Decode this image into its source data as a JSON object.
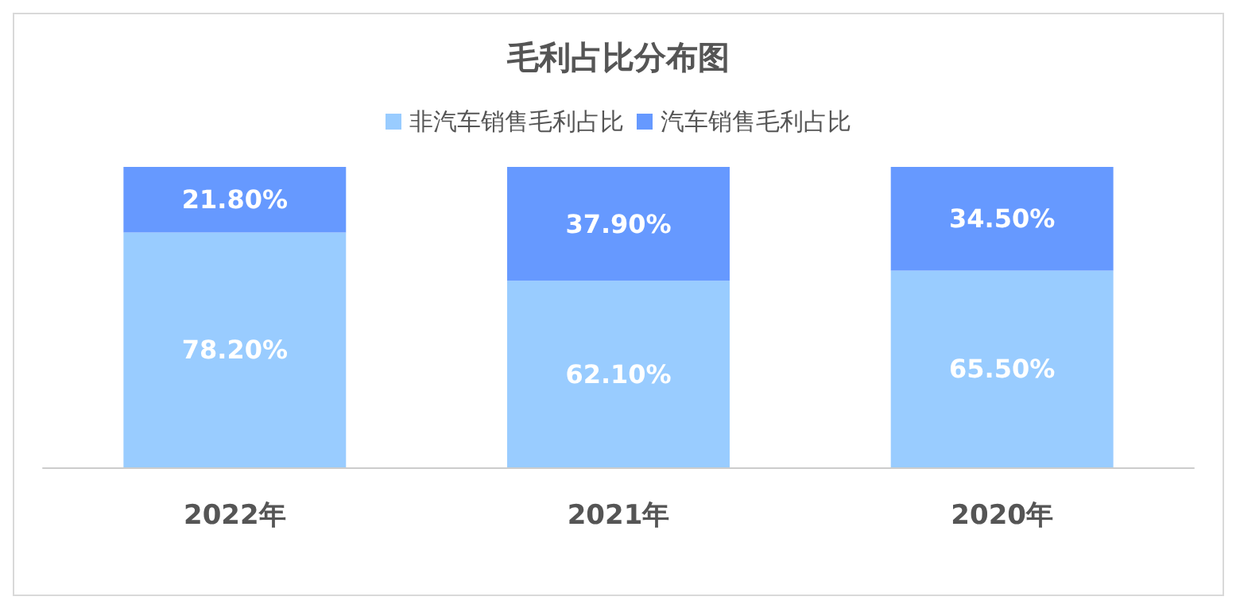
{
  "chart_data": {
    "type": "bar",
    "title": "毛利占比分布图",
    "categories": [
      "2022年",
      "2021年",
      "2020年"
    ],
    "stacked": true,
    "legend": "top",
    "series": [
      {
        "name": "非汽车销售毛利占比",
        "color": "#99ccff",
        "values": [
          78.2,
          62.1,
          65.5
        ],
        "value_labels": [
          "78.20%",
          "62.10%",
          "65.50%"
        ]
      },
      {
        "name": "汽车销售毛利占比",
        "color": "#6699ff",
        "values": [
          21.8,
          37.9,
          34.5
        ],
        "value_labels": [
          "21.80%",
          "37.90%",
          "34.50%"
        ]
      }
    ]
  }
}
